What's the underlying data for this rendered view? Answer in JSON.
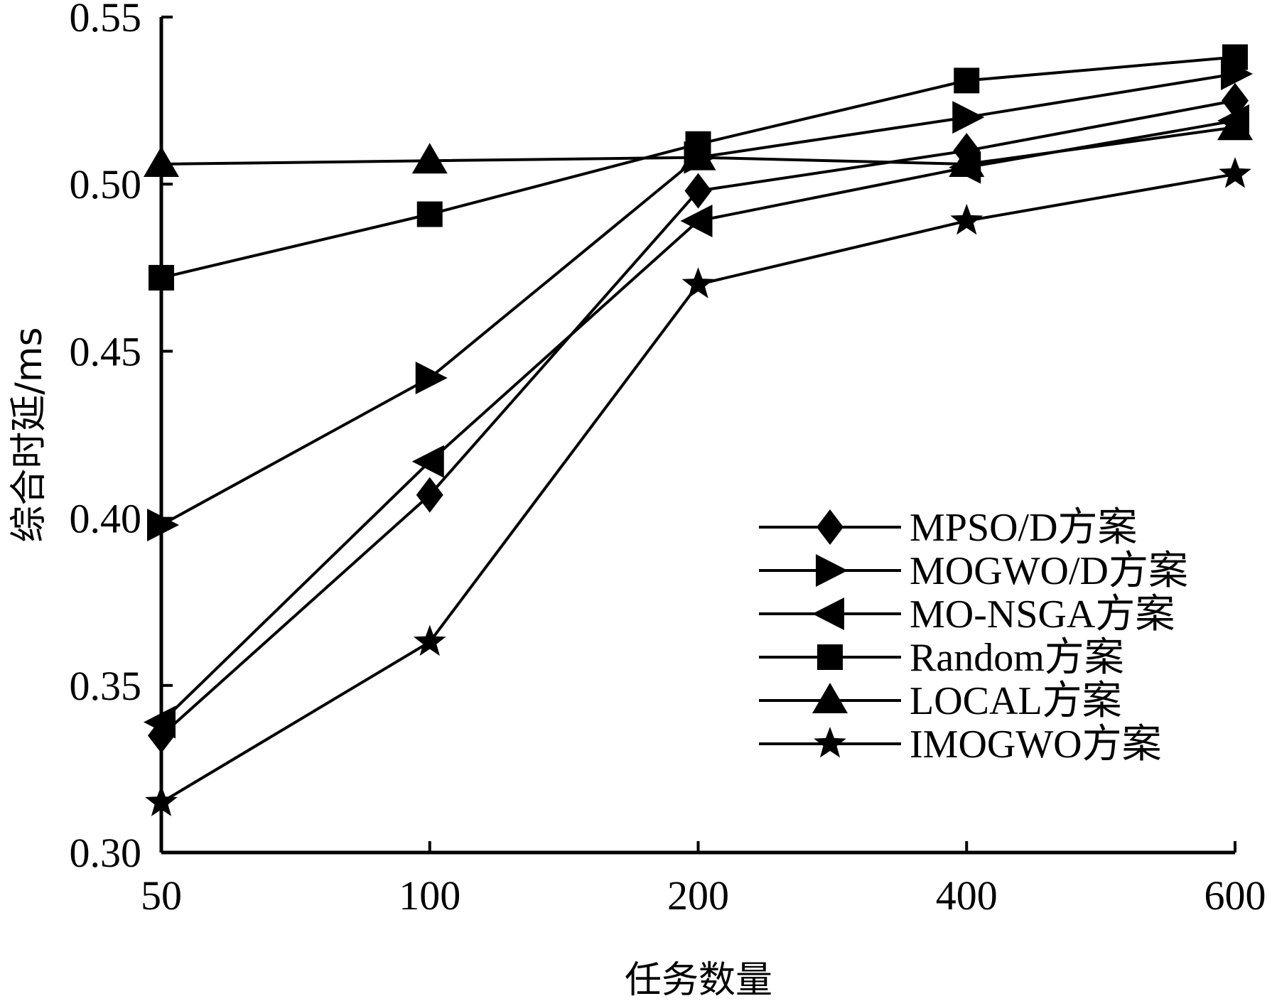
{
  "chart_data": {
    "type": "line",
    "xlabel": "任务数量",
    "ylabel": "综合时延/ms",
    "categories": [
      "50",
      "100",
      "200",
      "400",
      "600"
    ],
    "ylim": [
      0.3,
      0.55
    ],
    "yticks": [
      "0.30",
      "0.35",
      "0.40",
      "0.45",
      "0.50",
      "0.55"
    ],
    "grid": false,
    "legend_position": "bottom-right",
    "series": [
      {
        "name": "MPSO/D方案",
        "marker": "diamond",
        "values": [
          0.335,
          0.407,
          0.498,
          0.51,
          0.525
        ]
      },
      {
        "name": "MOGWO/D方案",
        "marker": "triangle-right",
        "values": [
          0.398,
          0.442,
          0.508,
          0.52,
          0.533
        ]
      },
      {
        "name": "MO-NSGA方案",
        "marker": "triangle-left",
        "values": [
          0.339,
          0.417,
          0.489,
          0.505,
          0.519
        ]
      },
      {
        "name": "Random方案",
        "marker": "square",
        "values": [
          0.472,
          0.491,
          0.512,
          0.531,
          0.538
        ]
      },
      {
        "name": "LOCAL方案",
        "marker": "triangle-up",
        "values": [
          0.506,
          0.507,
          0.508,
          0.506,
          0.517
        ]
      },
      {
        "name": "IMOGWO方案",
        "marker": "star",
        "values": [
          0.315,
          0.363,
          0.47,
          0.489,
          0.503
        ]
      }
    ]
  }
}
